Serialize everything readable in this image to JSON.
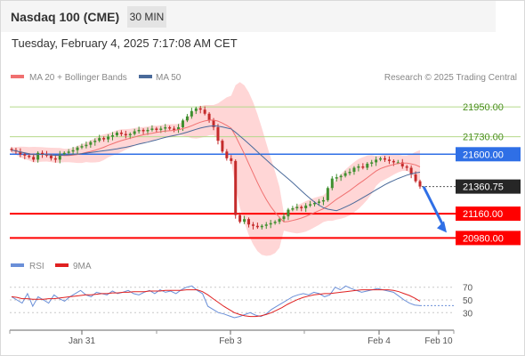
{
  "header": {
    "title": "Nasdaq 100 (CME)",
    "interval": "30 MIN",
    "timestamp": "Tuesday, February 4, 2025 7:17:08 AM CET"
  },
  "legend": {
    "ma20_label": "MA 20 + Bollinger Bands",
    "ma50_label": "MA 50",
    "copyright": "Research © 2025 Trading Central"
  },
  "rsi_legend": {
    "rsi_label": "RSI",
    "ma_label": "9MA"
  },
  "colors": {
    "resistance": "#b5d98a",
    "pivot": "#2f6fe6",
    "support": "#ff0000",
    "last_price_bg": "#262626",
    "candle_up": "#3f8f2f",
    "candle_down": "#c42b2b",
    "ma20": "#f07070",
    "ma50": "#4a6a9a",
    "bollinger": "#ffc8c8",
    "rsi": "#6a8fd8",
    "rsi_ma": "#e02020"
  },
  "chart_data": [
    {
      "type": "candlestick",
      "y_range": [
        20930,
        22050
      ],
      "x_ticks": [
        "Jan 31",
        "Feb 3",
        "Feb 4",
        "Feb 10"
      ],
      "levels": [
        {
          "label": "21950.00",
          "value": 21950,
          "kind": "resistance"
        },
        {
          "label": "21730.00",
          "value": 21730,
          "kind": "resistance"
        },
        {
          "label": "21600.00",
          "value": 21600,
          "kind": "pivot"
        },
        {
          "label": "21160.00",
          "value": 21160,
          "kind": "support"
        },
        {
          "label": "20980.00",
          "value": 20980,
          "kind": "support"
        }
      ],
      "last_price": {
        "label": "21360.75",
        "value": 21360.75
      },
      "forecast_arrow": "down",
      "close_series": [
        21630,
        21620,
        21600,
        21590,
        21580,
        21560,
        21610,
        21600,
        21590,
        21570,
        21560,
        21600,
        21610,
        21620,
        21630,
        21650,
        21660,
        21670,
        21690,
        21700,
        21720,
        21710,
        21730,
        21740,
        21760,
        21750,
        21740,
        21750,
        21770,
        21780,
        21770,
        21780,
        21790,
        21780,
        21790,
        21800,
        21790,
        21780,
        21800,
        21850,
        21880,
        21920,
        21940,
        21930,
        21900,
        21850,
        21800,
        21700,
        21620,
        21570,
        21550,
        21150,
        21100,
        21120,
        21080,
        21070,
        21060,
        21070,
        21080,
        21090,
        21100,
        21120,
        21140,
        21190,
        21200,
        21210,
        21200,
        21220,
        21230,
        21240,
        21250,
        21260,
        21350,
        21420,
        21430,
        21440,
        21460,
        21470,
        21500,
        21510,
        21500,
        21530,
        21540,
        21560,
        21570,
        21560,
        21550,
        21540,
        21540,
        21510,
        21500,
        21450,
        21400,
        21361
      ]
    },
    {
      "type": "line",
      "name": "RSI",
      "y_ticks": [
        70,
        50,
        30
      ],
      "y_range": [
        15,
        85
      ],
      "series": [
        {
          "name": "RSI",
          "values": [
            55,
            50,
            45,
            60,
            40,
            55,
            50,
            45,
            58,
            52,
            48,
            55,
            60,
            65,
            58,
            55,
            62,
            60,
            58,
            64,
            60,
            62,
            65,
            60,
            58,
            62,
            65,
            60,
            66,
            62,
            64,
            60,
            66,
            70,
            72,
            65,
            60,
            40,
            35,
            30,
            28,
            25,
            22,
            24,
            27,
            30,
            26,
            24,
            28,
            35,
            40,
            45,
            50,
            55,
            58,
            60,
            58,
            62,
            60,
            55,
            58,
            70,
            66,
            72,
            68,
            65,
            62,
            64,
            66,
            68,
            66,
            64,
            62,
            56,
            50,
            45,
            42,
            41
          ]
        },
        {
          "name": "9MA",
          "values": [
            55,
            54,
            52,
            52,
            51,
            51,
            51,
            52,
            52,
            53,
            54,
            55,
            56,
            57,
            58,
            58,
            59,
            60,
            60,
            61,
            61,
            62,
            62,
            63,
            63,
            63,
            64,
            64,
            64,
            65,
            65,
            65,
            65,
            66,
            66,
            66,
            63,
            58,
            52,
            46,
            40,
            35,
            30,
            27,
            25,
            24,
            24,
            25,
            27,
            30,
            34,
            38,
            43,
            47,
            51,
            54,
            56,
            58,
            59,
            60,
            60,
            61,
            62,
            63,
            64,
            65,
            66,
            66,
            66,
            66,
            66,
            66,
            65,
            63,
            60,
            57,
            53,
            48
          ]
        }
      ]
    }
  ]
}
